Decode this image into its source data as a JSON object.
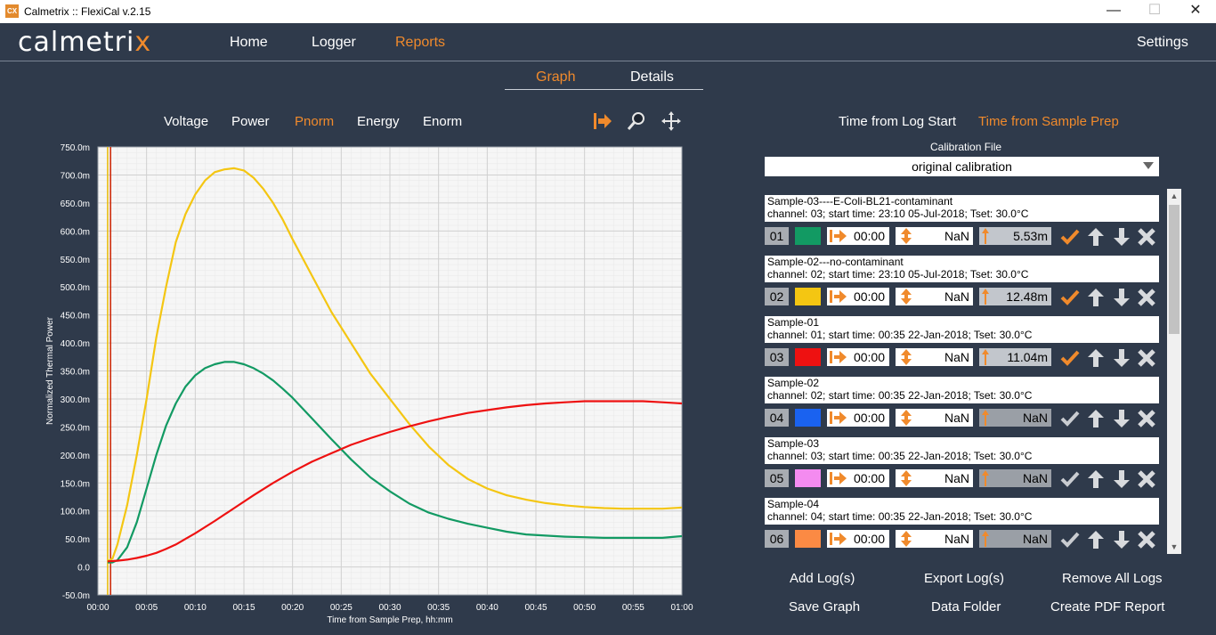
{
  "window": {
    "title": "Calmetrix :: FlexiCal v.2.15",
    "app_icon": "CX",
    "minimize": "—",
    "maximize": "☐",
    "close": "✕"
  },
  "brand": {
    "logo_main": "calmetri",
    "logo_x": "x",
    "accent": "#f08a2c"
  },
  "nav": {
    "home": "Home",
    "logger": "Logger",
    "reports": "Reports",
    "settings": "Settings"
  },
  "subtabs": {
    "graph": "Graph",
    "details": "Details"
  },
  "modes": [
    "Voltage",
    "Power",
    "Pnorm",
    "Energy",
    "Enorm"
  ],
  "time_options": {
    "log_start": "Time from Log Start",
    "sample_prep": "Time from Sample Prep"
  },
  "calibration": {
    "label": "Calibration File",
    "value": "original calibration"
  },
  "samples": [
    {
      "name": "Sample-03----E-Coli-BL21-contaminant",
      "info": "channel: 03; start time: 23:10 05-Jul-2018; Tset: 30.0°C",
      "num": "01",
      "color": "#129a63",
      "start": "00:00",
      "shift": "NaN",
      "baseline": "5.53m",
      "enabled": true
    },
    {
      "name": "Sample-02---no-contaminant",
      "info": "channel: 02; start time: 23:10 05-Jul-2018; Tset: 30.0°C",
      "num": "02",
      "color": "#f4c612",
      "start": "00:00",
      "shift": "NaN",
      "baseline": "12.48m",
      "enabled": true
    },
    {
      "name": "Sample-01",
      "info": "channel: 01; start time: 00:35 22-Jan-2018; Tset: 30.0°C",
      "num": "03",
      "color": "#ee1111",
      "start": "00:00",
      "shift": "NaN",
      "baseline": "11.04m",
      "enabled": true
    },
    {
      "name": "Sample-02",
      "info": "channel: 02; start time: 00:35 22-Jan-2018; Tset: 30.0°C",
      "num": "04",
      "color": "#1a62f0",
      "start": "00:00",
      "shift": "NaN",
      "baseline": "NaN",
      "enabled": false
    },
    {
      "name": "Sample-03",
      "info": "channel: 03; start time: 00:35 22-Jan-2018; Tset: 30.0°C",
      "num": "05",
      "color": "#f48bf0",
      "start": "00:00",
      "shift": "NaN",
      "baseline": "NaN",
      "enabled": false
    },
    {
      "name": "Sample-04",
      "info": "channel: 04; start time: 00:35 22-Jan-2018; Tset: 30.0°C",
      "num": "06",
      "color": "#fb8a44",
      "start": "00:00",
      "shift": "NaN",
      "baseline": "NaN",
      "enabled": false
    }
  ],
  "actions": {
    "add_logs": "Add Log(s)",
    "export_logs": "Export Log(s)",
    "remove_all": "Remove All Logs",
    "save_graph": "Save Graph",
    "data_folder": "Data Folder",
    "create_pdf": "Create PDF Report"
  },
  "chart_data": {
    "type": "line",
    "title": "",
    "xlabel": "Time from Sample Prep, hh:mm",
    "ylabel": "Normalized Thermal Power",
    "x_ticks": [
      "00:00",
      "00:05",
      "00:10",
      "00:15",
      "00:20",
      "00:25",
      "00:30",
      "00:35",
      "00:40",
      "00:45",
      "00:50",
      "00:55",
      "01:00"
    ],
    "y_ticks": [
      "750.0m",
      "700.0m",
      "650.0m",
      "600.0m",
      "550.0m",
      "500.0m",
      "450.0m",
      "400.0m",
      "350.0m",
      "300.0m",
      "250.0m",
      "200.0m",
      "150.0m",
      "100.0m",
      "50.0m",
      "0.0",
      "-50.0m"
    ],
    "xlim": [
      0,
      60
    ],
    "ylim": [
      -50,
      750
    ],
    "y_unit": "m",
    "grid": true,
    "markers": [
      {
        "x": 1.0,
        "color": "#e8b800"
      },
      {
        "x": 1.3,
        "color": "#cc2200"
      }
    ],
    "series": [
      {
        "color": "#f4c612",
        "x": [
          1,
          1.5,
          2,
          3,
          4,
          5,
          6,
          7,
          8,
          9,
          10,
          11,
          12,
          13,
          14,
          15,
          16,
          17,
          18,
          19,
          20,
          22,
          24,
          26,
          28,
          30,
          32,
          34,
          36,
          38,
          40,
          42,
          44,
          46,
          48,
          50,
          52,
          54,
          56,
          58,
          60
        ],
        "y": [
          10,
          15,
          40,
          110,
          200,
          300,
          410,
          500,
          580,
          630,
          665,
          690,
          705,
          710,
          712,
          708,
          695,
          675,
          650,
          620,
          585,
          520,
          455,
          400,
          345,
          300,
          255,
          215,
          182,
          157,
          140,
          128,
          120,
          114,
          110,
          107,
          105,
          104,
          104,
          104,
          106
        ]
      },
      {
        "color": "#129a63",
        "x": [
          1,
          1.5,
          2,
          3,
          4,
          5,
          6,
          7,
          8,
          9,
          10,
          11,
          12,
          13,
          14,
          15,
          16,
          17,
          18,
          19,
          20,
          22,
          24,
          26,
          28,
          30,
          32,
          34,
          36,
          38,
          40,
          42,
          44,
          46,
          48,
          50,
          52,
          54,
          56,
          58,
          60
        ],
        "y": [
          8,
          8,
          12,
          35,
          80,
          140,
          200,
          252,
          292,
          322,
          342,
          355,
          362,
          366,
          366,
          362,
          355,
          345,
          333,
          318,
          302,
          265,
          228,
          192,
          160,
          135,
          113,
          97,
          86,
          77,
          70,
          63,
          58,
          56,
          54,
          53,
          52,
          52,
          52,
          52,
          55
        ]
      },
      {
        "color": "#ee1111",
        "x": [
          1,
          2,
          3,
          4,
          5,
          6,
          7,
          8,
          9,
          10,
          12,
          14,
          16,
          18,
          20,
          22,
          24,
          26,
          28,
          30,
          32,
          34,
          36,
          38,
          40,
          42,
          44,
          46,
          48,
          50,
          52,
          54,
          56,
          58,
          60
        ],
        "y": [
          10,
          11,
          13,
          16,
          20,
          25,
          32,
          40,
          50,
          60,
          82,
          105,
          128,
          150,
          170,
          188,
          203,
          218,
          230,
          241,
          251,
          260,
          268,
          275,
          280,
          285,
          289,
          292,
          294,
          296,
          296,
          296,
          296,
          294,
          292
        ]
      }
    ]
  }
}
